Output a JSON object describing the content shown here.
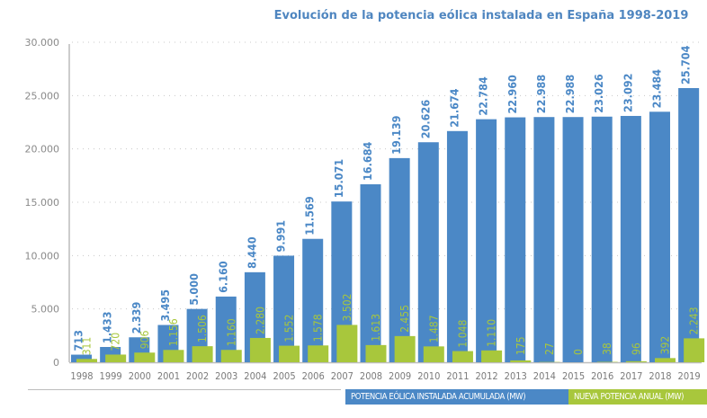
{
  "chart_data": {
    "type": "bar",
    "title": "Evolución de la potencia eólica instalada en España 1998-2019",
    "xlabel": "",
    "ylabel": "",
    "ylim": [
      0,
      30000
    ],
    "yticks": [
      0,
      5000,
      10000,
      15000,
      20000,
      25000,
      30000
    ],
    "ytick_labels": [
      "0",
      "5.000",
      "10.000",
      "15.000",
      "20.000",
      "25.000",
      "30.000"
    ],
    "grid": true,
    "legend_position": "bottom-right",
    "categories": [
      "1998",
      "1999",
      "2000",
      "2001",
      "2002",
      "2003",
      "2004",
      "2005",
      "2006",
      "2007",
      "2008",
      "2009",
      "2010",
      "2011",
      "2012",
      "2013",
      "2014",
      "2015",
      "2016",
      "2017",
      "2018",
      "2019"
    ],
    "series": [
      {
        "name": "POTENCIA EÓLICA INSTALADA ACUMULADA (MW)",
        "color": "#4b88c6",
        "values": [
          713,
          1433,
          2339,
          3495,
          5000,
          6160,
          8440,
          9991,
          11569,
          15071,
          16684,
          19139,
          20626,
          21674,
          22784,
          22960,
          22988,
          22988,
          23026,
          23092,
          23484,
          25704
        ],
        "labels": [
          "713",
          "1.433",
          "2.339",
          "3.495",
          "5.000",
          "6.160",
          "8.440",
          "9.991",
          "11.569",
          "15.071",
          "16.684",
          "19.139",
          "20.626",
          "21.674",
          "22.784",
          "22.960",
          "22.988",
          "22.988",
          "23.026",
          "23.092",
          "23.484",
          "25.704"
        ]
      },
      {
        "name": "NUEVA POTENCIA ANUAL (MW)",
        "color": "#a8c73c",
        "values": [
          311,
          720,
          906,
          1156,
          1506,
          1160,
          2280,
          1552,
          1578,
          3502,
          1613,
          2455,
          1487,
          1048,
          1110,
          175,
          27,
          0,
          38,
          96,
          392,
          2243
        ],
        "labels": [
          "311",
          "720",
          "906",
          "1.156",
          "1.506",
          "1.160",
          "2.280",
          "1.552",
          "1.578",
          "3.502",
          "1.613",
          "2.455",
          "1.487",
          "1.048",
          "1.110",
          "175",
          "27",
          "0",
          "38",
          "96",
          "392",
          "2.243"
        ]
      }
    ]
  },
  "legend": {
    "cumulative_label": "POTENCIA EÓLICA INSTALADA ACUMULADA (MW)",
    "annual_label": "NUEVA POTENCIA ANUAL (MW)"
  }
}
